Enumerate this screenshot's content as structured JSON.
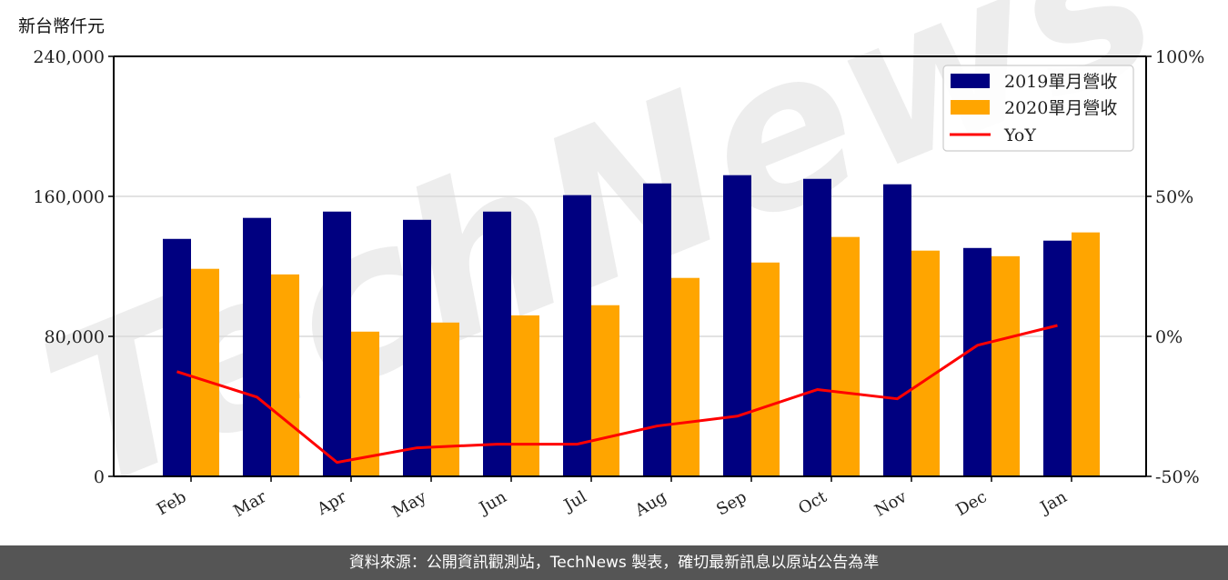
{
  "unit_label": "新台幣仟元",
  "footer": "資料來源：公開資訊觀測站，TechNews 製表，確切最新訊息以原站公告為準",
  "watermark": "TechNews",
  "colors": {
    "bar_2019": "#000080",
    "bar_2020": "#ffa500",
    "yoy": "#ff0000",
    "grid": "#d9d9d9",
    "footer_bg": "#555555"
  },
  "chart_data": {
    "type": "bar",
    "title": "",
    "xlabel": "",
    "ylabel": "新台幣仟元",
    "y2label": "",
    "categories": [
      "Feb",
      "Mar",
      "Apr",
      "May",
      "Jun",
      "Jul",
      "Aug",
      "Sep",
      "Oct",
      "Nov",
      "Dec",
      "Jan"
    ],
    "series": [
      {
        "name": "2019單月營收",
        "type": "bar",
        "axis": "left",
        "color": "#000080",
        "values": [
          135700,
          147700,
          151300,
          146600,
          151300,
          160700,
          167400,
          172100,
          170000,
          166900,
          130500,
          134700
        ]
      },
      {
        "name": "2020單月營收",
        "type": "bar",
        "axis": "left",
        "color": "#ffa500",
        "values": [
          118600,
          115400,
          82700,
          87900,
          92000,
          97800,
          113400,
          122200,
          136800,
          129000,
          125800,
          139400
        ]
      },
      {
        "name": "YoY",
        "type": "line",
        "axis": "right",
        "color": "#ff0000",
        "values": [
          -12.6,
          -21.7,
          -45.0,
          -39.8,
          -38.5,
          -38.5,
          -32.0,
          -28.5,
          -19.0,
          -22.3,
          -3.2,
          3.9
        ]
      }
    ],
    "ylim": [
      0,
      240000
    ],
    "yticks": [
      0,
      80000,
      160000,
      240000
    ],
    "ytick_labels": [
      "0",
      "80,000",
      "160,000",
      "240,000"
    ],
    "y2lim": [
      -50,
      100
    ],
    "y2ticks": [
      -50,
      0,
      50,
      100
    ],
    "y2tick_labels": [
      "-50%",
      "0%",
      "50%",
      "100%"
    ],
    "grid": true,
    "legend_position": "upper right"
  }
}
